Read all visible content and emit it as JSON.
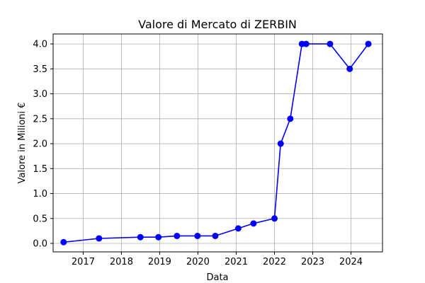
{
  "chart_data": {
    "type": "line",
    "title": "Valore di Mercato di ZERBIN",
    "xlabel": "Data",
    "ylabel": "Valore in Milioni €",
    "xlim": [
      "2016-03-20",
      "2024-10-28"
    ],
    "ylim": [
      -0.17,
      4.2
    ],
    "x_ticks": [
      "2017-01-01",
      "2018-01-01",
      "2019-01-01",
      "2020-01-01",
      "2021-01-01",
      "2022-01-01",
      "2023-01-01",
      "2024-01-01"
    ],
    "x_tick_labels": [
      "2017",
      "2018",
      "2019",
      "2020",
      "2021",
      "2022",
      "2023",
      "2024"
    ],
    "y_ticks": [
      0.0,
      0.5,
      1.0,
      1.5,
      2.0,
      2.5,
      3.0,
      3.5,
      4.0
    ],
    "y_tick_labels": [
      "0.0",
      "0.5",
      "1.0",
      "1.5",
      "2.0",
      "2.5",
      "3.0",
      "3.5",
      "4.0"
    ],
    "grid": true,
    "series": [
      {
        "color": "#0000ff",
        "marker": "circle",
        "points": [
          {
            "x": "2016-06-28",
            "y": 0.025
          },
          {
            "x": "2017-06-01",
            "y": 0.1
          },
          {
            "x": "2018-07-01",
            "y": 0.125
          },
          {
            "x": "2018-12-20",
            "y": 0.125
          },
          {
            "x": "2019-06-15",
            "y": 0.15
          },
          {
            "x": "2019-12-28",
            "y": 0.15
          },
          {
            "x": "2020-06-15",
            "y": 0.15
          },
          {
            "x": "2021-01-20",
            "y": 0.3
          },
          {
            "x": "2021-06-15",
            "y": 0.4
          },
          {
            "x": "2022-01-01",
            "y": 0.5
          },
          {
            "x": "2022-03-01",
            "y": 2.0
          },
          {
            "x": "2022-06-01",
            "y": 2.5
          },
          {
            "x": "2022-09-20",
            "y": 4.0
          },
          {
            "x": "2022-10-30",
            "y": 4.0
          },
          {
            "x": "2023-06-15",
            "y": 4.0
          },
          {
            "x": "2023-12-20",
            "y": 3.5
          },
          {
            "x": "2024-06-15",
            "y": 4.0
          }
        ]
      }
    ]
  }
}
